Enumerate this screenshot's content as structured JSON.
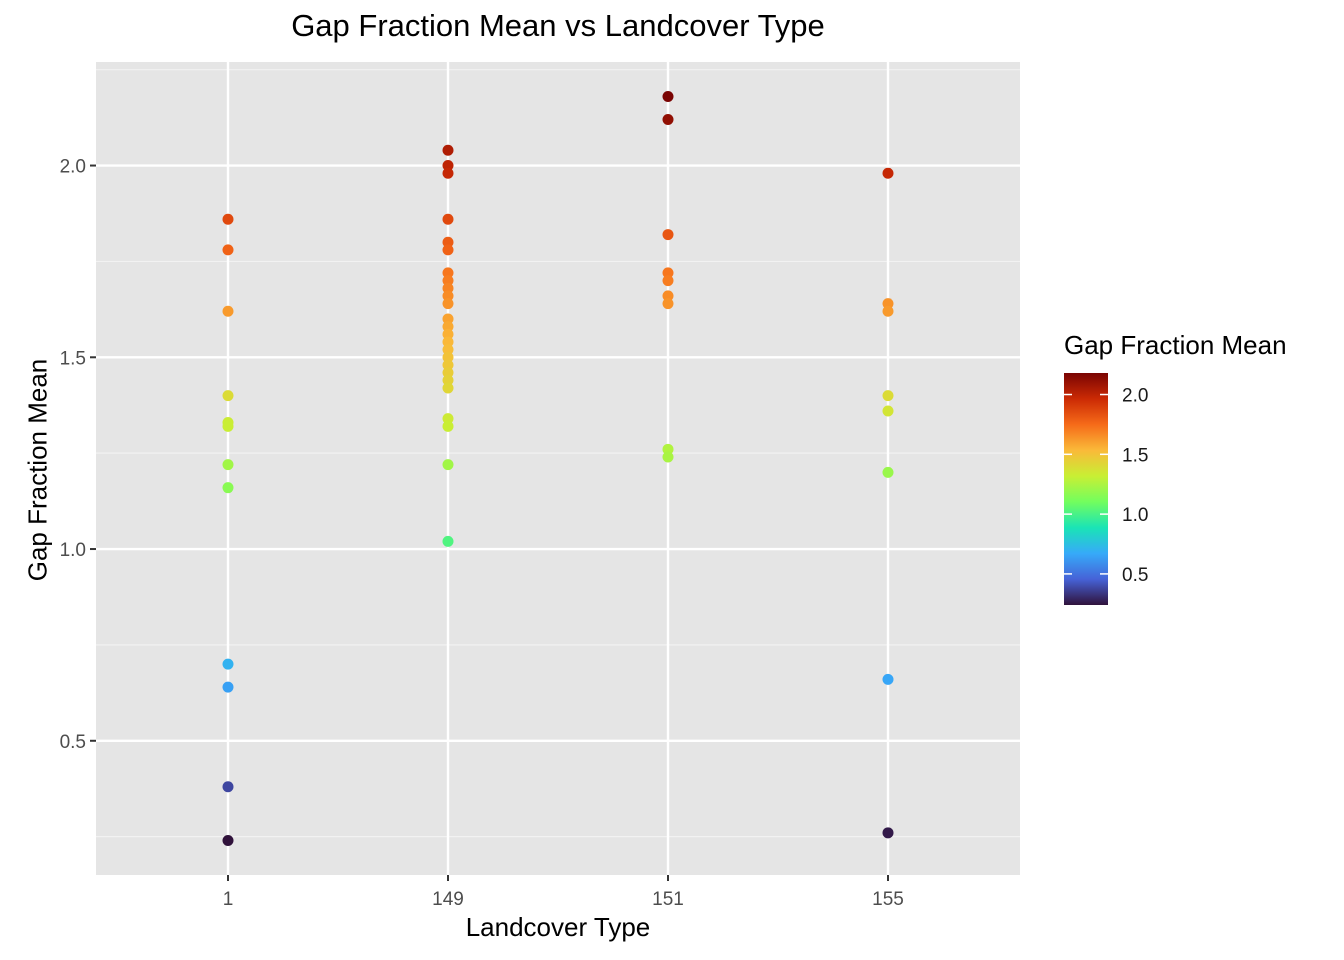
{
  "chart_data": {
    "type": "scatter",
    "title": "Gap Fraction Mean vs Landcover Type",
    "xlabel": "Landcover Type",
    "ylabel": "Gap Fraction Mean",
    "categories": [
      "1",
      "149",
      "151",
      "155"
    ],
    "ylim": [
      0.15,
      2.27
    ],
    "yticks": [
      0.5,
      1.0,
      1.5,
      2.0
    ],
    "ytick_labels": [
      "0.5",
      "1.0",
      "1.5",
      "2.0"
    ],
    "grid": true,
    "panel_background": "#e5e5e5",
    "legend": {
      "title": "Gap Fraction Mean",
      "placement": "right",
      "type": "colorbar",
      "range": [
        0.24,
        2.18
      ],
      "ticks": [
        0.5,
        1.0,
        1.5,
        2.0
      ],
      "tick_labels": [
        "0.5",
        "1.0",
        "1.5",
        "2.0"
      ],
      "colormap": [
        "#30123b",
        "#4662d7",
        "#36aaf9",
        "#1ae4b6",
        "#72fe5e",
        "#c8ef34",
        "#faba39",
        "#f66b19",
        "#cb2a04",
        "#7a0403"
      ]
    },
    "points": [
      {
        "x": "1",
        "y": 1.86
      },
      {
        "x": "1",
        "y": 1.78
      },
      {
        "x": "1",
        "y": 1.62
      },
      {
        "x": "1",
        "y": 1.4
      },
      {
        "x": "1",
        "y": 1.33
      },
      {
        "x": "1",
        "y": 1.32
      },
      {
        "x": "1",
        "y": 1.22
      },
      {
        "x": "1",
        "y": 1.16
      },
      {
        "x": "1",
        "y": 0.7
      },
      {
        "x": "1",
        "y": 0.64
      },
      {
        "x": "1",
        "y": 0.38
      },
      {
        "x": "1",
        "y": 0.24
      },
      {
        "x": "149",
        "y": 2.04
      },
      {
        "x": "149",
        "y": 2.0
      },
      {
        "x": "149",
        "y": 1.98
      },
      {
        "x": "149",
        "y": 1.86
      },
      {
        "x": "149",
        "y": 1.8
      },
      {
        "x": "149",
        "y": 1.78
      },
      {
        "x": "149",
        "y": 1.72
      },
      {
        "x": "149",
        "y": 1.7
      },
      {
        "x": "149",
        "y": 1.68
      },
      {
        "x": "149",
        "y": 1.66
      },
      {
        "x": "149",
        "y": 1.64
      },
      {
        "x": "149",
        "y": 1.6
      },
      {
        "x": "149",
        "y": 1.58
      },
      {
        "x": "149",
        "y": 1.56
      },
      {
        "x": "149",
        "y": 1.54
      },
      {
        "x": "149",
        "y": 1.52
      },
      {
        "x": "149",
        "y": 1.5
      },
      {
        "x": "149",
        "y": 1.48
      },
      {
        "x": "149",
        "y": 1.46
      },
      {
        "x": "149",
        "y": 1.44
      },
      {
        "x": "149",
        "y": 1.42
      },
      {
        "x": "149",
        "y": 1.34
      },
      {
        "x": "149",
        "y": 1.32
      },
      {
        "x": "149",
        "y": 1.22
      },
      {
        "x": "149",
        "y": 1.02
      },
      {
        "x": "151",
        "y": 2.18
      },
      {
        "x": "151",
        "y": 2.12
      },
      {
        "x": "151",
        "y": 1.82
      },
      {
        "x": "151",
        "y": 1.72
      },
      {
        "x": "151",
        "y": 1.7
      },
      {
        "x": "151",
        "y": 1.66
      },
      {
        "x": "151",
        "y": 1.64
      },
      {
        "x": "151",
        "y": 1.26
      },
      {
        "x": "151",
        "y": 1.24
      },
      {
        "x": "155",
        "y": 1.98
      },
      {
        "x": "155",
        "y": 1.64
      },
      {
        "x": "155",
        "y": 1.62
      },
      {
        "x": "155",
        "y": 1.4
      },
      {
        "x": "155",
        "y": 1.36
      },
      {
        "x": "155",
        "y": 1.2
      },
      {
        "x": "155",
        "y": 0.66
      },
      {
        "x": "155",
        "y": 0.26
      }
    ]
  }
}
